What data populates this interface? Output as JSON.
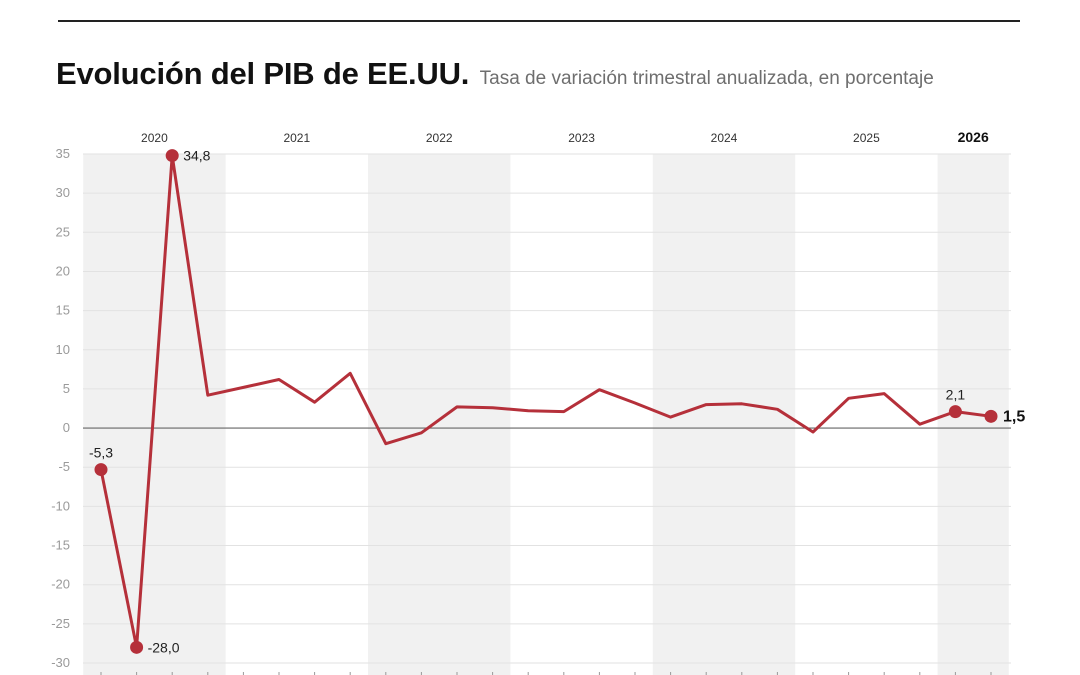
{
  "header": {
    "title": "Evolución del PIB de EE.UU.",
    "subtitle": "Tasa de variación trimestral anualizada, en porcentaje"
  },
  "chart_data": {
    "type": "line",
    "title": "Evolución del PIB de EE.UU.",
    "subtitle": "Tasa de variación trimestral anualizada, en porcentaje",
    "xlabel": "",
    "ylabel": "",
    "ylim": [
      -30,
      35
    ],
    "yticks": [
      35,
      30,
      25,
      20,
      15,
      10,
      5,
      0,
      -5,
      -10,
      -15,
      -20,
      -25,
      -30
    ],
    "grid": true,
    "legend": "none",
    "years": [
      {
        "label": "2020",
        "quarters": 4,
        "highlight": true
      },
      {
        "label": "2021",
        "quarters": 4,
        "highlight": false
      },
      {
        "label": "2022",
        "quarters": 4,
        "highlight": true
      },
      {
        "label": "2023",
        "quarters": 4,
        "highlight": false
      },
      {
        "label": "2024",
        "quarters": 4,
        "highlight": true
      },
      {
        "label": "2025",
        "quarters": 4,
        "highlight": false
      },
      {
        "label": "2026",
        "quarters": 2,
        "highlight": true,
        "current": true
      }
    ],
    "series": [
      {
        "values": [
          -5.3,
          -28.0,
          34.8,
          4.2,
          5.2,
          6.2,
          3.3,
          7.0,
          -2.0,
          -0.6,
          2.7,
          2.6,
          2.2,
          2.1,
          4.9,
          3.2,
          1.4,
          3.0,
          3.1,
          2.4,
          -0.5,
          3.8,
          4.4,
          0.5,
          2.1,
          1.5
        ],
        "color": "#b5303a"
      }
    ],
    "annotations": [
      {
        "index": 0,
        "label": "-5,3",
        "position": "above"
      },
      {
        "index": 1,
        "label": "-28,0",
        "position": "right"
      },
      {
        "index": 2,
        "label": "34,8",
        "position": "right"
      },
      {
        "index": 24,
        "label": "2,1",
        "position": "above"
      },
      {
        "index": 25,
        "label": "1,5",
        "position": "right"
      }
    ],
    "colors": {
      "line": "#b5303a",
      "band": "#f1f1f1",
      "grid": "#e2e2e2",
      "zero": "#666666"
    }
  }
}
